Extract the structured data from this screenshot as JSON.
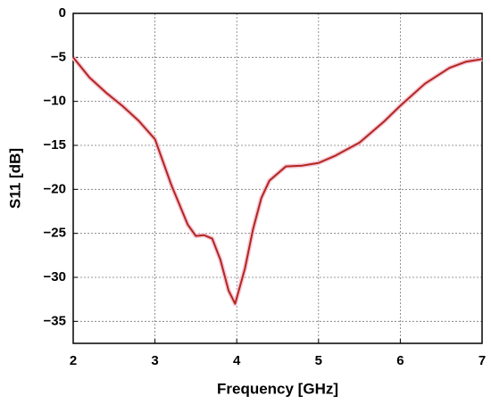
{
  "chart_data": {
    "type": "line",
    "x_label": "Frequency   [GHz]",
    "y_label": "S11  [dB]",
    "xlim": [
      2,
      7
    ],
    "xticks": [
      2,
      3,
      4,
      5,
      6,
      7
    ],
    "ylim": [
      -37.5,
      0
    ],
    "yticks": [
      0,
      {
        "value": -5,
        "label": "−5"
      },
      {
        "value": -10,
        "label": "−10"
      },
      {
        "value": -15,
        "label": "−15"
      },
      {
        "value": -20,
        "label": "−20"
      },
      {
        "value": -25,
        "label": "−25"
      },
      {
        "value": -30,
        "label": "−30"
      },
      {
        "value": -35,
        "label": "−35"
      }
    ],
    "grid": true,
    "series": [
      {
        "color": "#b3261e",
        "x": [
          2.0,
          2.2,
          2.4,
          2.6,
          2.8,
          3.0,
          3.2,
          3.4,
          3.5,
          3.6,
          3.7,
          3.8,
          3.9,
          3.98,
          4.1,
          4.2,
          4.3,
          4.4,
          4.6,
          4.8,
          5.0,
          5.2,
          5.5,
          5.8,
          6.0,
          6.3,
          6.6,
          6.8,
          7.0
        ],
        "values": [
          -5,
          -7.3,
          -9,
          -10.5,
          -12.2,
          -14.3,
          -19.5,
          -24,
          -25.3,
          -25.2,
          -25.6,
          -28,
          -31.5,
          -33,
          -29,
          -24.5,
          -21,
          -19,
          -17.4,
          -17.3,
          -17,
          -16.2,
          -14.7,
          -12.3,
          -10.5,
          -8,
          -6.2,
          -5.5,
          -5.2
        ]
      }
    ]
  }
}
